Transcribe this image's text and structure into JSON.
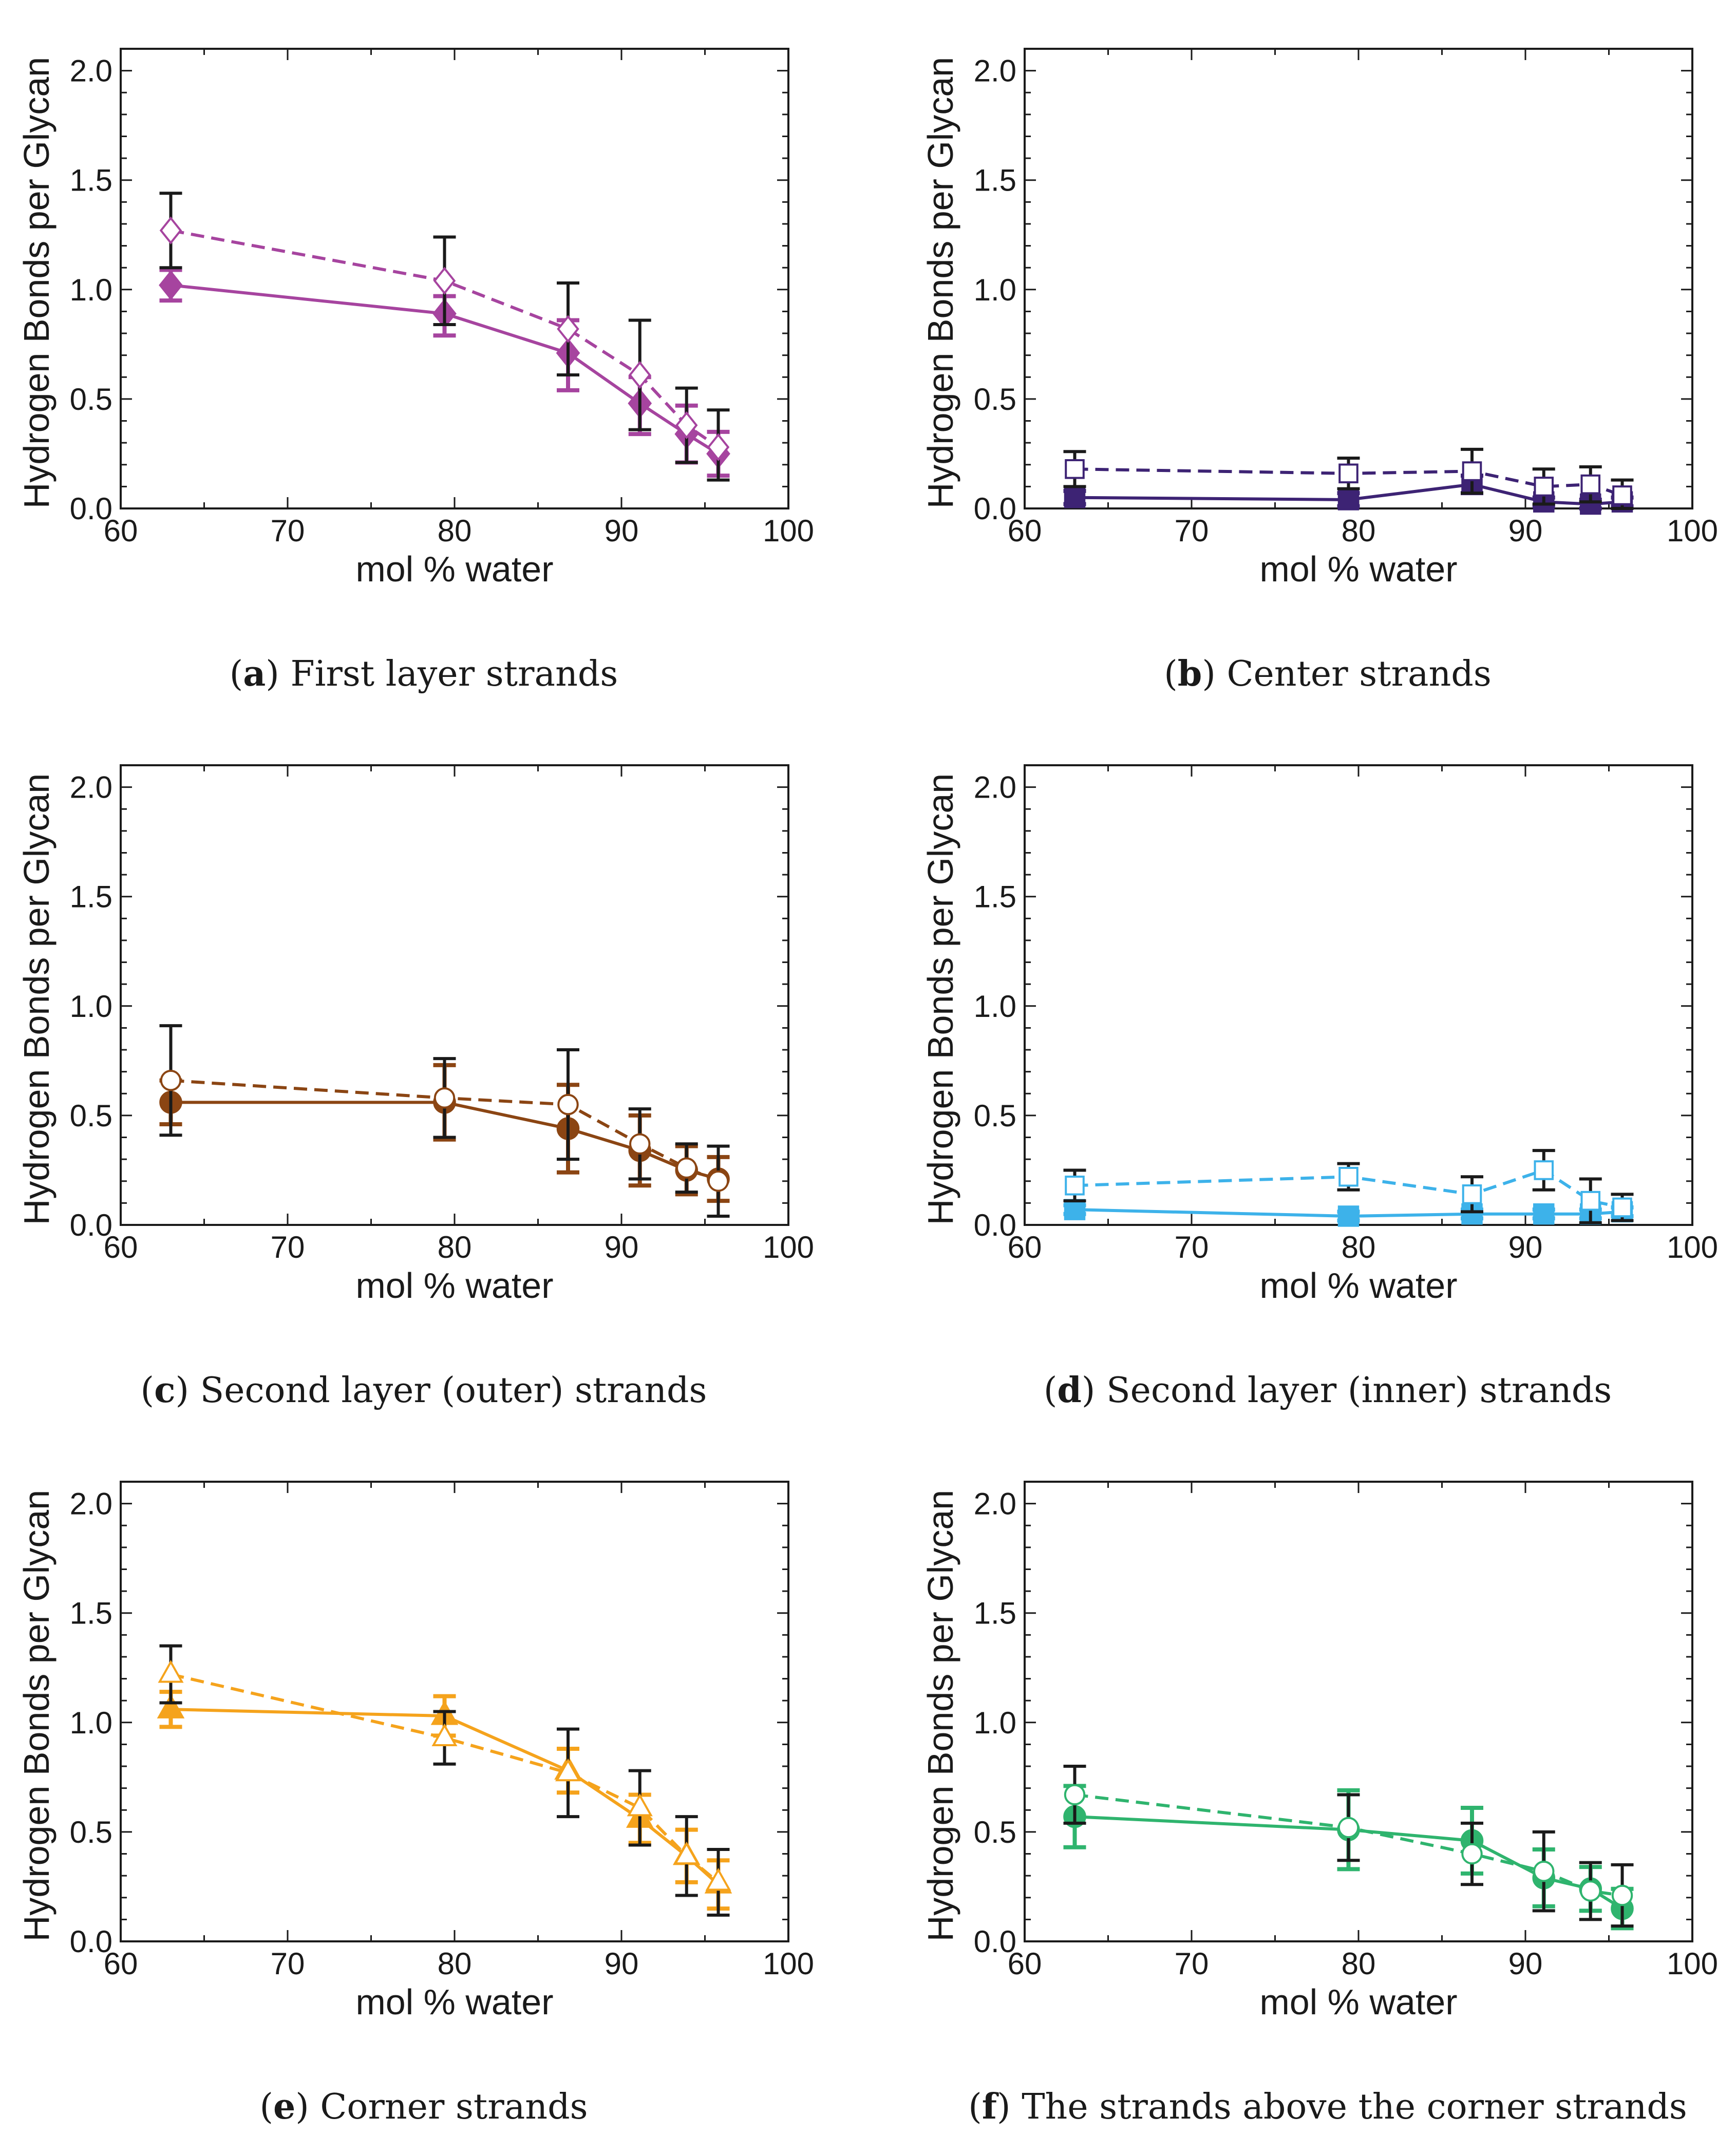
{
  "chart_data": [
    {
      "type": "line",
      "panel_letter": "a",
      "caption": "First layer strands",
      "color": "#a6449f",
      "marker": "diamond",
      "xlabel": "mol % water",
      "ylabel": "Hydrogen Bonds per Glycan",
      "xlim": [
        60,
        100
      ],
      "ylim": [
        0,
        2.1
      ],
      "xticks": [
        "60",
        "70",
        "80",
        "90",
        "100"
      ],
      "yticks": [
        "0.0",
        "0.5",
        "1.0",
        "1.5",
        "2.0"
      ],
      "x": [
        63,
        79.4,
        86.8,
        91.1,
        93.9,
        95.8
      ],
      "series": [
        {
          "name": "solid (filled)",
          "style": "solid",
          "values": [
            1.02,
            0.89,
            0.71,
            0.48,
            0.34,
            0.25
          ],
          "err_lo": [
            0.07,
            0.1,
            0.17,
            0.14,
            0.13,
            0.1
          ],
          "err_hi": [
            0.07,
            0.08,
            0.15,
            0.12,
            0.13,
            0.1
          ]
        },
        {
          "name": "dashed (open)",
          "style": "dashed",
          "values": [
            1.27,
            1.04,
            0.82,
            0.61,
            0.38,
            0.28
          ],
          "err_lo": [
            0.17,
            0.2,
            0.21,
            0.25,
            0.17,
            0.15
          ],
          "err_hi": [
            0.17,
            0.2,
            0.21,
            0.25,
            0.17,
            0.17
          ]
        }
      ]
    },
    {
      "type": "line",
      "panel_letter": "b",
      "caption": "Center strands",
      "color": "#3d2374",
      "marker": "square",
      "xlabel": "mol % water",
      "ylabel": "Hydrogen Bonds per Glycan",
      "xlim": [
        60,
        100
      ],
      "ylim": [
        0,
        2.1
      ],
      "xticks": [
        "60",
        "70",
        "80",
        "90",
        "100"
      ],
      "yticks": [
        "0.0",
        "0.5",
        "1.0",
        "1.5",
        "2.0"
      ],
      "x": [
        63,
        79.4,
        86.8,
        91.1,
        93.9,
        95.8
      ],
      "series": [
        {
          "name": "solid (filled)",
          "style": "solid",
          "values": [
            0.05,
            0.04,
            0.11,
            0.03,
            0.02,
            0.03
          ],
          "err_lo": [
            0.03,
            0.03,
            0.04,
            0.02,
            0.02,
            0.02
          ],
          "err_hi": [
            0.03,
            0.03,
            0.04,
            0.02,
            0.02,
            0.02
          ]
        },
        {
          "name": "dashed (open)",
          "style": "dashed",
          "values": [
            0.18,
            0.16,
            0.17,
            0.1,
            0.11,
            0.06
          ],
          "err_lo": [
            0.08,
            0.07,
            0.1,
            0.08,
            0.08,
            0.06
          ],
          "err_hi": [
            0.08,
            0.07,
            0.1,
            0.08,
            0.08,
            0.07
          ]
        }
      ]
    },
    {
      "type": "line",
      "panel_letter": "c",
      "caption": "Second layer (outer) strands",
      "color": "#8b4513",
      "marker": "circle",
      "xlabel": "mol % water",
      "ylabel": "Hydrogen Bonds per Glycan",
      "xlim": [
        60,
        100
      ],
      "ylim": [
        0,
        2.1
      ],
      "xticks": [
        "60",
        "70",
        "80",
        "90",
        "100"
      ],
      "yticks": [
        "0.0",
        "0.5",
        "1.0",
        "1.5",
        "2.0"
      ],
      "x": [
        63,
        79.4,
        86.8,
        91.1,
        93.9,
        95.8
      ],
      "series": [
        {
          "name": "solid (filled)",
          "style": "solid",
          "values": [
            0.56,
            0.56,
            0.44,
            0.34,
            0.25,
            0.21
          ],
          "err_lo": [
            0.1,
            0.17,
            0.2,
            0.16,
            0.11,
            0.1
          ],
          "err_hi": [
            0.1,
            0.17,
            0.2,
            0.16,
            0.11,
            0.1
          ]
        },
        {
          "name": "dashed (open)",
          "style": "dashed",
          "values": [
            0.66,
            0.58,
            0.55,
            0.37,
            0.26,
            0.2
          ],
          "err_lo": [
            0.25,
            0.18,
            0.25,
            0.16,
            0.11,
            0.16
          ],
          "err_hi": [
            0.25,
            0.18,
            0.25,
            0.16,
            0.11,
            0.16
          ]
        }
      ]
    },
    {
      "type": "line",
      "panel_letter": "d",
      "caption": "Second layer (inner) strands",
      "color": "#3db2ea",
      "marker": "square",
      "xlabel": "mol % water",
      "ylabel": "Hydrogen Bonds per Glycan",
      "xlim": [
        60,
        100
      ],
      "ylim": [
        0,
        2.1
      ],
      "xticks": [
        "60",
        "70",
        "80",
        "90",
        "100"
      ],
      "yticks": [
        "0.0",
        "0.5",
        "1.0",
        "1.5",
        "2.0"
      ],
      "x": [
        63,
        79.4,
        86.8,
        91.1,
        93.9,
        95.8
      ],
      "series": [
        {
          "name": "solid (filled)",
          "style": "solid",
          "values": [
            0.07,
            0.04,
            0.05,
            0.05,
            0.05,
            0.06
          ],
          "err_lo": [
            0.02,
            0.02,
            0.02,
            0.02,
            0.02,
            0.02
          ],
          "err_hi": [
            0.02,
            0.02,
            0.02,
            0.02,
            0.02,
            0.02
          ]
        },
        {
          "name": "dashed (open)",
          "style": "dashed",
          "values": [
            0.18,
            0.22,
            0.14,
            0.25,
            0.11,
            0.08
          ],
          "err_lo": [
            0.07,
            0.06,
            0.08,
            0.09,
            0.1,
            0.06
          ],
          "err_hi": [
            0.07,
            0.06,
            0.08,
            0.09,
            0.1,
            0.06
          ]
        }
      ]
    },
    {
      "type": "line",
      "panel_letter": "e",
      "caption": "Corner strands",
      "color": "#f5a31c",
      "marker": "triangle",
      "xlabel": "mol % water",
      "ylabel": "Hydrogen Bonds per Glycan",
      "xlim": [
        60,
        100
      ],
      "ylim": [
        0,
        2.1
      ],
      "xticks": [
        "60",
        "70",
        "80",
        "90",
        "100"
      ],
      "yticks": [
        "0.0",
        "0.5",
        "1.0",
        "1.5",
        "2.0"
      ],
      "x": [
        63,
        79.4,
        86.8,
        91.1,
        93.9,
        95.8
      ],
      "series": [
        {
          "name": "solid (filled)",
          "style": "solid",
          "values": [
            1.06,
            1.03,
            0.78,
            0.56,
            0.39,
            0.26
          ],
          "err_lo": [
            0.08,
            0.09,
            0.1,
            0.11,
            0.12,
            0.11
          ],
          "err_hi": [
            0.08,
            0.09,
            0.1,
            0.11,
            0.12,
            0.11
          ]
        },
        {
          "name": "dashed (open)",
          "style": "dashed",
          "values": [
            1.22,
            0.93,
            0.77,
            0.61,
            0.39,
            0.27
          ],
          "err_lo": [
            0.13,
            0.12,
            0.2,
            0.17,
            0.18,
            0.15
          ],
          "err_hi": [
            0.13,
            0.12,
            0.2,
            0.17,
            0.18,
            0.15
          ]
        }
      ]
    },
    {
      "type": "line",
      "panel_letter": "f",
      "caption": "The strands above the corner strands",
      "color": "#2fb46e",
      "marker": "circle",
      "xlabel": "mol % water",
      "ylabel": "Hydrogen Bonds per Glycan",
      "xlim": [
        60,
        100
      ],
      "ylim": [
        0,
        2.1
      ],
      "xticks": [
        "60",
        "70",
        "80",
        "90",
        "100"
      ],
      "yticks": [
        "0.0",
        "0.5",
        "1.0",
        "1.5",
        "2.0"
      ],
      "x": [
        63,
        79.4,
        86.8,
        91.1,
        93.9,
        95.8
      ],
      "series": [
        {
          "name": "solid (filled)",
          "style": "solid",
          "values": [
            0.57,
            0.51,
            0.46,
            0.29,
            0.24,
            0.15
          ],
          "err_lo": [
            0.14,
            0.18,
            0.15,
            0.13,
            0.1,
            0.09
          ],
          "err_hi": [
            0.14,
            0.18,
            0.15,
            0.13,
            0.1,
            0.09
          ]
        },
        {
          "name": "dashed (open)",
          "style": "dashed",
          "values": [
            0.67,
            0.52,
            0.4,
            0.32,
            0.23,
            0.21
          ],
          "err_lo": [
            0.13,
            0.15,
            0.14,
            0.18,
            0.13,
            0.14
          ],
          "err_hi": [
            0.13,
            0.15,
            0.14,
            0.18,
            0.13,
            0.14
          ]
        }
      ]
    }
  ]
}
